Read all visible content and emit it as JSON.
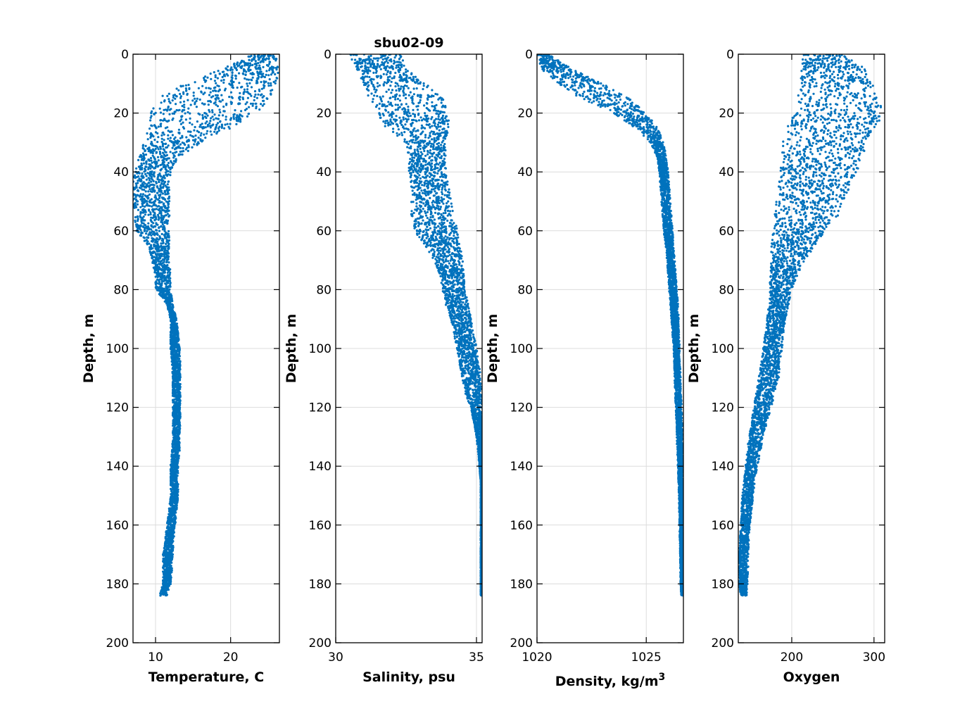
{
  "figure": {
    "title": "sbu02-09",
    "marker_color": "#0072BD"
  },
  "chart_data": [
    {
      "type": "scatter",
      "xlabel": "Temperature, C",
      "ylabel": "Depth, m",
      "xlim": [
        7,
        26.5
      ],
      "ylim": [
        0,
        200
      ],
      "y_reversed": true,
      "xticks": [
        10,
        20
      ],
      "xtick_labels": [
        "10",
        "20"
      ],
      "yticks": [
        0,
        20,
        40,
        60,
        80,
        100,
        120,
        140,
        160,
        180,
        200
      ],
      "ytick_labels": [
        "0",
        "20",
        "40",
        "60",
        "80",
        "100",
        "120",
        "140",
        "160",
        "180",
        "200"
      ],
      "grid": true,
      "color": "#0072BD",
      "envelope": {
        "depth": [
          0,
          5,
          10,
          15,
          20,
          25,
          30,
          35,
          40,
          45,
          50,
          55,
          60,
          65,
          70,
          75,
          80,
          85,
          90,
          95,
          100,
          105,
          110,
          115,
          120,
          125,
          130,
          135,
          140,
          145,
          150,
          155,
          160,
          165,
          170,
          175,
          180,
          184
        ],
        "min": [
          23,
          19,
          14,
          10.5,
          9.5,
          9,
          8.5,
          7.8,
          7.2,
          7,
          7,
          7.2,
          7.5,
          9,
          9.5,
          10,
          10,
          11.5,
          12,
          12,
          12,
          12.2,
          12.3,
          12.3,
          12.3,
          12.3,
          12.3,
          12.2,
          12,
          12,
          12,
          11.8,
          11.5,
          11.3,
          11,
          11,
          11,
          10.5
        ],
        "max": [
          26.3,
          26.3,
          26,
          25.5,
          23.5,
          20,
          16,
          13,
          12,
          11.8,
          11.8,
          11.8,
          11.8,
          11.8,
          11.8,
          12,
          12,
          12.3,
          12.8,
          13,
          13.2,
          13.3,
          13.3,
          13.3,
          13.3,
          13.3,
          13.2,
          13.2,
          13,
          13,
          13,
          12.8,
          12.6,
          12.4,
          12.3,
          12.2,
          12,
          11.5
        ]
      }
    },
    {
      "type": "scatter",
      "xlabel": "Salinity, psu",
      "ylabel": "Depth, m",
      "xlim": [
        30,
        35.2
      ],
      "ylim": [
        0,
        200
      ],
      "y_reversed": true,
      "xticks": [
        30,
        35
      ],
      "xtick_labels": [
        "30",
        "35"
      ],
      "yticks": [
        0,
        20,
        40,
        60,
        80,
        100,
        120,
        140,
        160,
        180,
        200
      ],
      "ytick_labels": [
        "0",
        "20",
        "40",
        "60",
        "80",
        "100",
        "120",
        "140",
        "160",
        "180",
        "200"
      ],
      "grid": true,
      "color": "#0072BD",
      "envelope": {
        "depth": [
          0,
          5,
          10,
          15,
          20,
          25,
          30,
          35,
          40,
          45,
          50,
          55,
          60,
          65,
          70,
          75,
          80,
          85,
          90,
          95,
          100,
          105,
          110,
          115,
          120,
          125,
          130,
          135,
          140,
          145,
          150,
          160,
          170,
          180,
          184
        ],
        "min": [
          30.5,
          30.7,
          31,
          31.2,
          31.5,
          31.8,
          32.5,
          32.6,
          32.6,
          32.7,
          32.7,
          32.7,
          32.8,
          33.2,
          33.5,
          33.7,
          33.8,
          33.9,
          34.1,
          34.2,
          34.3,
          34.4,
          34.5,
          34.6,
          34.8,
          34.9,
          35.0,
          35.05,
          35.1,
          35.15,
          35.15,
          35.15,
          35.15,
          35.15,
          35.15
        ],
        "max": [
          32.3,
          32.5,
          33.2,
          33.8,
          34.0,
          34.0,
          33.9,
          33.9,
          33.9,
          34.0,
          34.1,
          34.2,
          34.3,
          34.4,
          34.5,
          34.55,
          34.6,
          34.7,
          34.8,
          34.9,
          35.0,
          35.1,
          35.15,
          35.2,
          35.2,
          35.2,
          35.2,
          35.2,
          35.2,
          35.2,
          35.2,
          35.2,
          35.2,
          35.2,
          35.2
        ]
      }
    },
    {
      "type": "scatter",
      "xlabel": "Density, kg/m",
      "xlabel_superscript": "3",
      "ylabel": "Depth, m",
      "xlim": [
        1020,
        1026.7
      ],
      "ylim": [
        0,
        200
      ],
      "y_reversed": true,
      "xticks": [
        1020,
        1025
      ],
      "xtick_labels": [
        "1020",
        "1025"
      ],
      "yticks": [
        0,
        20,
        40,
        60,
        80,
        100,
        120,
        140,
        160,
        180,
        200
      ],
      "ytick_labels": [
        "0",
        "20",
        "40",
        "60",
        "80",
        "100",
        "120",
        "140",
        "160",
        "180",
        "200"
      ],
      "grid": true,
      "color": "#0072BD",
      "envelope": {
        "depth": [
          0,
          5,
          10,
          15,
          20,
          25,
          30,
          35,
          40,
          45,
          50,
          55,
          60,
          65,
          70,
          75,
          80,
          85,
          90,
          95,
          100,
          105,
          110,
          115,
          120,
          125,
          130,
          135,
          140,
          145,
          150,
          160,
          170,
          180,
          184
        ],
        "min": [
          1020.0,
          1020.2,
          1021.0,
          1022.0,
          1023.5,
          1024.5,
          1025.2,
          1025.5,
          1025.6,
          1025.65,
          1025.7,
          1025.75,
          1025.8,
          1025.9,
          1025.95,
          1026.0,
          1026.05,
          1026.1,
          1026.15,
          1026.2,
          1026.25,
          1026.28,
          1026.3,
          1026.32,
          1026.35,
          1026.38,
          1026.4,
          1026.42,
          1026.45,
          1026.47,
          1026.5,
          1026.52,
          1026.55,
          1026.57,
          1026.6
        ],
        "max": [
          1020.5,
          1021.6,
          1023.0,
          1024.2,
          1025.0,
          1025.5,
          1025.8,
          1025.9,
          1026.0,
          1026.05,
          1026.1,
          1026.15,
          1026.2,
          1026.25,
          1026.3,
          1026.35,
          1026.4,
          1026.45,
          1026.48,
          1026.5,
          1026.52,
          1026.55,
          1026.57,
          1026.6,
          1026.62,
          1026.64,
          1026.65,
          1026.66,
          1026.67,
          1026.68,
          1026.68,
          1026.69,
          1026.7,
          1026.7,
          1026.7
        ]
      }
    },
    {
      "type": "scatter",
      "xlabel": "Oxygen",
      "ylabel": "Depth, m",
      "xlim": [
        135,
        313
      ],
      "ylim": [
        0,
        200
      ],
      "y_reversed": true,
      "xticks": [
        200,
        300
      ],
      "xtick_labels": [
        "200",
        "300"
      ],
      "yticks": [
        0,
        20,
        40,
        60,
        80,
        100,
        120,
        140,
        160,
        180,
        200
      ],
      "ytick_labels": [
        "0",
        "20",
        "40",
        "60",
        "80",
        "100",
        "120",
        "140",
        "160",
        "180",
        "200"
      ],
      "grid": true,
      "color": "#0072BD",
      "envelope": {
        "depth": [
          0,
          5,
          10,
          15,
          20,
          25,
          30,
          35,
          40,
          45,
          50,
          55,
          60,
          65,
          70,
          75,
          80,
          85,
          90,
          95,
          100,
          105,
          110,
          115,
          120,
          125,
          130,
          135,
          140,
          145,
          150,
          155,
          160,
          165,
          170,
          175,
          180,
          184
        ],
        "min": [
          214,
          212,
          210,
          208,
          205,
          195,
          190,
          188,
          186,
          185,
          182,
          180,
          178,
          176,
          175,
          174,
          173,
          172,
          170,
          168,
          165,
          163,
          160,
          157,
          154,
          151,
          148,
          146,
          144,
          142,
          140,
          139,
          138,
          137,
          136,
          136,
          136,
          138
        ],
        "max": [
          260,
          290,
          298,
          305,
          312,
          300,
          290,
          285,
          278,
          270,
          262,
          255,
          240,
          228,
          215,
          207,
          200,
          196,
          192,
          190,
          188,
          186,
          184,
          180,
          175,
          170,
          165,
          162,
          158,
          155,
          153,
          151,
          149,
          148,
          147,
          147,
          146,
          145
        ]
      }
    }
  ]
}
